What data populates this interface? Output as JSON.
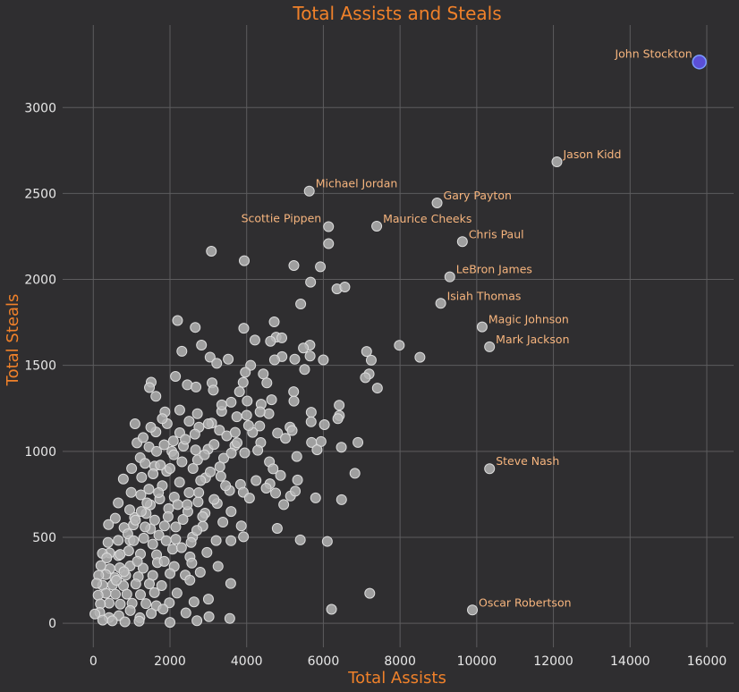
{
  "chart_data": {
    "type": "scatter",
    "title": "Total Assists and Steals",
    "xlabel": "Total Assists",
    "ylabel": "Total Steals",
    "xlim": [
      -800,
      16700
    ],
    "ylim": [
      -140,
      3480
    ],
    "xticks": [
      0,
      2000,
      4000,
      6000,
      8000,
      10000,
      12000,
      14000,
      16000
    ],
    "yticks": [
      0,
      500,
      1000,
      1500,
      2000,
      2500,
      3000
    ],
    "grid": true,
    "colors": {
      "background": "#2f2e30",
      "grid": "#5d5c5e",
      "point_fill": "#b3b3b3",
      "point_edge": "#dcdcdc",
      "highlight_fill": "#5b4fd6",
      "highlight_edge": "#7a9cff",
      "accent": "#f0812a",
      "annotation": "#f7b57e"
    },
    "highlight": {
      "name": "John Stockton",
      "x": 15806,
      "y": 3265
    },
    "labeled_points": [
      {
        "name": "Jason Kidd",
        "x": 12091,
        "y": 2684,
        "label_side": "right"
      },
      {
        "name": "Michael Jordan",
        "x": 5633,
        "y": 2514,
        "label_side": "right"
      },
      {
        "name": "Gary Payton",
        "x": 8966,
        "y": 2445,
        "label_side": "right"
      },
      {
        "name": "Scottie Pippen",
        "x": 6135,
        "y": 2307,
        "label_side": "left"
      },
      {
        "name": "Maurice Cheeks",
        "x": 7392,
        "y": 2310,
        "label_side": "right"
      },
      {
        "name": "Chris Paul",
        "x": 9626,
        "y": 2220,
        "label_side": "right"
      },
      {
        "name": "LeBron James",
        "x": 9298,
        "y": 2015,
        "label_side": "right"
      },
      {
        "name": "Isiah Thomas",
        "x": 9061,
        "y": 1861,
        "label_side": "right"
      },
      {
        "name": "Magic Johnson",
        "x": 10141,
        "y": 1724,
        "label_side": "right"
      },
      {
        "name": "Mark Jackson",
        "x": 10334,
        "y": 1608,
        "label_side": "right"
      },
      {
        "name": "Steve Nash",
        "x": 10335,
        "y": 899,
        "label_side": "right"
      },
      {
        "name": "Oscar Robertson",
        "x": 9887,
        "y": 77,
        "label_side": "right"
      }
    ],
    "other_points": [
      [
        3079,
        2164
      ],
      [
        3937,
        2109
      ],
      [
        5231,
        2081
      ],
      [
        5922,
        2074
      ],
      [
        6136,
        2208
      ],
      [
        5667,
        1984
      ],
      [
        6354,
        1945
      ],
      [
        6560,
        1956
      ],
      [
        5409,
        1857
      ],
      [
        2197,
        1761
      ],
      [
        2659,
        1721
      ],
      [
        4719,
        1753
      ],
      [
        3924,
        1716
      ],
      [
        4215,
        1647
      ],
      [
        4768,
        1664
      ],
      [
        4917,
        1660
      ],
      [
        4621,
        1640
      ],
      [
        5649,
        1618
      ],
      [
        5479,
        1601
      ],
      [
        2821,
        1618
      ],
      [
        7981,
        1617
      ],
      [
        7128,
        1581
      ],
      [
        2310,
        1582
      ],
      [
        3046,
        1548
      ],
      [
        3519,
        1536
      ],
      [
        4922,
        1551
      ],
      [
        5654,
        1554
      ],
      [
        5254,
        1536
      ],
      [
        6000,
        1532
      ],
      [
        7249,
        1530
      ],
      [
        8519,
        1547
      ],
      [
        3220,
        1512
      ],
      [
        4104,
        1500
      ],
      [
        4728,
        1532
      ],
      [
        5511,
        1476
      ],
      [
        7193,
        1450
      ],
      [
        3965,
        1460
      ],
      [
        4434,
        1450
      ],
      [
        7096,
        1429
      ],
      [
        2143,
        1436
      ],
      [
        1509,
        1402
      ],
      [
        3097,
        1398
      ],
      [
        3908,
        1401
      ],
      [
        4527,
        1398
      ],
      [
        2452,
        1387
      ],
      [
        2678,
        1374
      ],
      [
        1464,
        1371
      ],
      [
        3131,
        1356
      ],
      [
        3813,
        1347
      ],
      [
        5225,
        1347
      ],
      [
        7409,
        1368
      ],
      [
        6413,
        1268
      ],
      [
        1632,
        1320
      ],
      [
        3595,
        1286
      ],
      [
        4014,
        1293
      ],
      [
        4377,
        1274
      ],
      [
        5232,
        1292
      ],
      [
        1869,
        1229
      ],
      [
        2255,
        1240
      ],
      [
        3348,
        1233
      ],
      [
        2715,
        1219
      ],
      [
        3743,
        1201
      ],
      [
        4579,
        1219
      ],
      [
        5683,
        1227
      ],
      [
        6417,
        1208
      ],
      [
        6378,
        1190
      ],
      [
        1088,
        1160
      ],
      [
        1926,
        1161
      ],
      [
        2500,
        1175
      ],
      [
        3088,
        1164
      ],
      [
        4339,
        1147
      ],
      [
        5131,
        1141
      ],
      [
        6028,
        1155
      ],
      [
        5681,
        1172
      ],
      [
        1632,
        1113
      ],
      [
        2255,
        1108
      ],
      [
        2756,
        1141
      ],
      [
        3290,
        1123
      ],
      [
        4154,
        1110
      ],
      [
        4805,
        1106
      ],
      [
        5186,
        1121
      ],
      [
        6902,
        1052
      ],
      [
        5012,
        1076
      ],
      [
        6470,
        1024
      ],
      [
        5940,
        1057
      ],
      [
        5691,
        1052
      ],
      [
        3480,
        1090
      ],
      [
        4366,
        1051
      ],
      [
        2088,
        1060
      ],
      [
        1140,
        1049
      ],
      [
        1453,
        1026
      ],
      [
        1849,
        1038
      ],
      [
        2667,
        1008
      ],
      [
        2993,
        1012
      ],
      [
        3693,
        1034
      ],
      [
        4290,
        1006
      ],
      [
        5307,
        970
      ],
      [
        5836,
        1009
      ],
      [
        3948,
        991
      ],
      [
        4593,
        939
      ],
      [
        4690,
        898
      ],
      [
        6823,
        872
      ],
      [
        4883,
        860
      ],
      [
        2312,
        939
      ],
      [
        2720,
        950
      ],
      [
        1224,
        963
      ],
      [
        1600,
        914
      ],
      [
        5327,
        833
      ],
      [
        4245,
        830
      ],
      [
        4606,
        811
      ],
      [
        3839,
        807
      ],
      [
        3327,
        855
      ],
      [
        2929,
        846
      ],
      [
        1914,
        884
      ],
      [
        1559,
        869
      ],
      [
        1261,
        849
      ],
      [
        783,
        839
      ],
      [
        5143,
        740
      ],
      [
        5268,
        768
      ],
      [
        4754,
        757
      ],
      [
        4510,
        786
      ],
      [
        3911,
        762
      ],
      [
        3555,
        772
      ],
      [
        5798,
        729
      ],
      [
        6475,
        719
      ],
      [
        4073,
        728
      ],
      [
        3232,
        697
      ],
      [
        2733,
        706
      ],
      [
        2112,
        734
      ],
      [
        1731,
        723
      ],
      [
        1240,
        747
      ],
      [
        988,
        761
      ],
      [
        1487,
        689
      ],
      [
        4967,
        690
      ],
      [
        3594,
        650
      ],
      [
        2914,
        640
      ],
      [
        2465,
        650
      ],
      [
        1965,
        667
      ],
      [
        1379,
        638
      ],
      [
        1075,
        615
      ],
      [
        573,
        611
      ],
      [
        4797,
        552
      ],
      [
        3860,
        566
      ],
      [
        3380,
        588
      ],
      [
        2856,
        564
      ],
      [
        2339,
        604
      ],
      [
        1856,
        566
      ],
      [
        1492,
        549
      ],
      [
        1045,
        572
      ],
      [
        802,
        556
      ],
      [
        396,
        574
      ],
      [
        5399,
        485
      ],
      [
        6103,
        476
      ],
      [
        3917,
        503
      ],
      [
        3590,
        480
      ],
      [
        3204,
        481
      ],
      [
        2589,
        502
      ],
      [
        2149,
        489
      ],
      [
        1710,
        512
      ],
      [
        1315,
        495
      ],
      [
        957,
        483
      ],
      [
        650,
        482
      ],
      [
        383,
        470
      ],
      [
        2964,
        412
      ],
      [
        2522,
        386
      ],
      [
        2069,
        431
      ],
      [
        1651,
        398
      ],
      [
        1230,
        403
      ],
      [
        923,
        421
      ],
      [
        653,
        393
      ],
      [
        426,
        409
      ],
      [
        237,
        406
      ],
      [
        3254,
        331
      ],
      [
        2569,
        350
      ],
      [
        2110,
        330
      ],
      [
        1672,
        353
      ],
      [
        1298,
        320
      ],
      [
        960,
        333
      ],
      [
        692,
        323
      ],
      [
        433,
        317
      ],
      [
        198,
        335
      ],
      [
        2789,
        297
      ],
      [
        2398,
        280
      ],
      [
        2001,
        289
      ],
      [
        1550,
        278
      ],
      [
        1174,
        270
      ],
      [
        844,
        279
      ],
      [
        562,
        265
      ],
      [
        327,
        283
      ],
      [
        140,
        279
      ],
      [
        3584,
        231
      ],
      [
        2519,
        251
      ],
      [
        1782,
        219
      ],
      [
        1463,
        229
      ],
      [
        1108,
        228
      ],
      [
        787,
        218
      ],
      [
        502,
        223
      ],
      [
        242,
        221
      ],
      [
        86,
        232
      ],
      [
        2183,
        175
      ],
      [
        1595,
        178
      ],
      [
        1230,
        166
      ],
      [
        875,
        169
      ],
      [
        577,
        169
      ],
      [
        330,
        174
      ],
      [
        126,
        163
      ],
      [
        7210,
        174
      ],
      [
        6213,
        81
      ],
      [
        3002,
        140
      ],
      [
        2626,
        124
      ],
      [
        1984,
        119
      ],
      [
        1643,
        102
      ],
      [
        1373,
        114
      ],
      [
        1012,
        116
      ],
      [
        704,
        111
      ],
      [
        413,
        117
      ],
      [
        185,
        112
      ],
      [
        3017,
        38
      ],
      [
        3560,
        28
      ],
      [
        2703,
        15
      ],
      [
        2415,
        60
      ],
      [
        1821,
        82
      ],
      [
        1512,
        57
      ],
      [
        1215,
        32
      ],
      [
        964,
        74
      ],
      [
        667,
        44
      ],
      [
        411,
        33
      ],
      [
        168,
        63
      ],
      [
        42,
        54
      ],
      [
        2000,
        5
      ],
      [
        1195,
        12
      ],
      [
        824,
        8
      ],
      [
        495,
        14
      ],
      [
        245,
        18
      ],
      [
        1100,
        600
      ],
      [
        1250,
        650
      ],
      [
        900,
        520
      ],
      [
        1400,
        700
      ],
      [
        1800,
        800
      ],
      [
        2000,
        900
      ],
      [
        700,
        400
      ],
      [
        1600,
        600
      ],
      [
        1050,
        480
      ],
      [
        1350,
        560
      ],
      [
        1700,
        760
      ],
      [
        2250,
        820
      ],
      [
        2600,
        900
      ],
      [
        2900,
        980
      ],
      [
        3150,
        1040
      ],
      [
        800,
        300
      ],
      [
        600,
        250
      ],
      [
        350,
        380
      ],
      [
        1900,
        480
      ],
      [
        2150,
        560
      ],
      [
        2450,
        690
      ],
      [
        2750,
        760
      ],
      [
        3050,
        880
      ],
      [
        3400,
        960
      ],
      [
        3750,
        1050
      ],
      [
        4050,
        1150
      ],
      [
        4350,
        1230
      ],
      [
        4650,
        1300
      ],
      [
        1300,
        1080
      ],
      [
        1650,
        1000
      ],
      [
        2050,
        1000
      ],
      [
        2350,
        1030
      ],
      [
        3350,
        1270
      ],
      [
        3700,
        1110
      ],
      [
        4000,
        1210
      ],
      [
        650,
        700
      ],
      [
        950,
        660
      ],
      [
        1450,
        780
      ],
      [
        2850,
        620
      ],
      [
        3150,
        720
      ],
      [
        3450,
        800
      ],
      [
        2550,
        470
      ],
      [
        1950,
        620
      ],
      [
        2700,
        540
      ],
      [
        1150,
        360
      ],
      [
        1850,
        360
      ],
      [
        2300,
        440
      ],
      [
        1550,
        460
      ],
      [
        2200,
        690
      ],
      [
        2500,
        760
      ],
      [
        2800,
        830
      ],
      [
        3300,
        910
      ],
      [
        3600,
        990
      ],
      [
        1750,
        920
      ],
      [
        2100,
        980
      ],
      [
        2400,
        1070
      ],
      [
        1000,
        900
      ],
      [
        1350,
        930
      ],
      [
        1500,
        1140
      ],
      [
        1800,
        1190
      ],
      [
        2650,
        1100
      ],
      [
        3000,
        1160
      ]
    ]
  }
}
